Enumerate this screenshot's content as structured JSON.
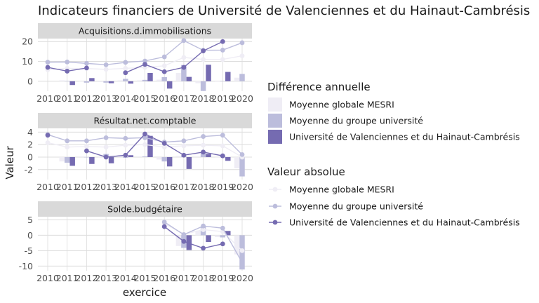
{
  "title": "Indicateurs financiers de Université de Valenciennes et du Hainaut-Cambrésis",
  "xlabel": "exercice",
  "ylabel": "Valeur",
  "colors": {
    "mesri": "#efedf5",
    "groupe": "#bcbddc",
    "univ": "#756bb1",
    "strip": "#d9d9d9",
    "grid": "#dcdcdc"
  },
  "legend": {
    "bar_title": "Différence annuelle",
    "line_title": "Valeur absolue",
    "entries": [
      "Moyenne globale MESRI",
      "Moyenne du groupe université",
      "Université de Valenciennes et du Hainaut-Cambrésis"
    ]
  },
  "chart_data": [
    {
      "type": "line",
      "title": "Acquisitions.d.immobilisations",
      "x": [
        2010,
        2011,
        2012,
        2013,
        2014,
        2015,
        2016,
        2017,
        2018,
        2019,
        2020
      ],
      "ylim": [
        -5,
        21.5
      ],
      "yticks": [
        0,
        10,
        20
      ],
      "series": [
        {
          "name": "Moyenne globale MESRI",
          "values": [
            5.8,
            6.5,
            6.4,
            6.0,
            6.5,
            7.0,
            7.8,
            12.0,
            11.0,
            11.0,
            12.8
          ]
        },
        {
          "name": "Moyenne du groupe université",
          "values": [
            9.6,
            9.7,
            9.0,
            8.3,
            9.5,
            10.2,
            12.3,
            20.5,
            15.6,
            15.7,
            19.4
          ]
        },
        {
          "name": "Université de Valenciennes et du Hainaut-Cambrésis",
          "values": [
            7.0,
            5.1,
            6.7,
            null,
            4.3,
            8.5,
            4.8,
            7.0,
            15.3,
            20.0,
            null
          ]
        }
      ],
      "bars": [
        {
          "name": "Moyenne globale MESRI",
          "values": [
            null,
            0.5,
            -0.2,
            -0.4,
            0.5,
            0.5,
            0.8,
            4.2,
            -1.0,
            0.0,
            1.8
          ]
        },
        {
          "name": "Moyenne du groupe université",
          "values": [
            null,
            0.1,
            -0.7,
            -0.7,
            1.2,
            0.7,
            2.1,
            8.2,
            -4.9,
            0.1,
            3.7
          ]
        },
        {
          "name": "Université de Valenciennes et du Hainaut-Cambrésis",
          "values": [
            null,
            -1.9,
            1.6,
            -1.0,
            -1.2,
            4.2,
            -3.7,
            2.2,
            8.3,
            4.7,
            null
          ]
        }
      ]
    },
    {
      "type": "line",
      "title": "Résultat.net.comptable",
      "x": [
        2010,
        2011,
        2012,
        2013,
        2014,
        2015,
        2016,
        2017,
        2018,
        2019,
        2020
      ],
      "ylim": [
        -3.6,
        4.6
      ],
      "yticks": [
        -2,
        0,
        2,
        4
      ],
      "series": [
        {
          "name": "Moyenne globale MESRI",
          "values": [
            2.3,
            1.6,
            1.7,
            1.6,
            1.9,
            2.0,
            1.6,
            1.8,
            1.9,
            1.8,
            0.0
          ]
        },
        {
          "name": "Moyenne du groupe université",
          "values": [
            3.6,
            2.6,
            2.6,
            3.1,
            3.0,
            3.1,
            2.4,
            2.6,
            3.3,
            3.5,
            0.4
          ]
        },
        {
          "name": "Université de Valenciennes et du Hainaut-Cambrésis",
          "values": [
            3.5,
            null,
            1.0,
            0.0,
            0.3,
            3.7,
            2.2,
            0.3,
            0.8,
            0.2,
            null
          ]
        }
      ],
      "bars": [
        {
          "name": "Moyenne globale MESRI",
          "values": [
            null,
            -0.7,
            0.1,
            -0.1,
            0.3,
            0.1,
            -0.4,
            0.2,
            0.1,
            -0.1,
            -1.8
          ]
        },
        {
          "name": "Moyenne du groupe université",
          "values": [
            null,
            -0.9,
            0.0,
            0.5,
            -0.1,
            0.1,
            -0.7,
            0.2,
            0.7,
            0.2,
            -3.1
          ]
        },
        {
          "name": "Université de Valenciennes et du Hainaut-Cambrésis",
          "values": [
            null,
            -1.4,
            -1.1,
            -1.0,
            0.3,
            3.4,
            -1.5,
            -1.9,
            0.5,
            -0.6,
            null
          ]
        }
      ]
    },
    {
      "type": "line",
      "title": "Solde.budgétaire",
      "x": [
        2010,
        2011,
        2012,
        2013,
        2014,
        2015,
        2016,
        2017,
        2018,
        2019,
        2020
      ],
      "ylim": [
        -11.5,
        6.0
      ],
      "yticks": [
        -10,
        -5,
        0,
        5
      ],
      "series": [
        {
          "name": "Moyenne globale MESRI",
          "values": [
            null,
            null,
            null,
            null,
            null,
            null,
            3.8,
            0.3,
            1.8,
            1.2,
            -5.0
          ]
        },
        {
          "name": "Moyenne du groupe université",
          "values": [
            null,
            null,
            null,
            null,
            null,
            null,
            4.3,
            0.2,
            3.0,
            2.3,
            -8.8
          ]
        },
        {
          "name": "Université de Valenciennes et du Hainaut-Cambrésis",
          "values": [
            null,
            null,
            null,
            null,
            null,
            null,
            2.8,
            -2.0,
            -4.2,
            -2.8,
            null
          ]
        }
      ],
      "bars": [
        {
          "name": "Moyenne globale MESRI",
          "values": [
            null,
            null,
            null,
            null,
            null,
            null,
            null,
            -3.5,
            1.5,
            -0.6,
            -6.2
          ]
        },
        {
          "name": "Moyenne du groupe université",
          "values": [
            null,
            null,
            null,
            null,
            null,
            null,
            null,
            -4.1,
            2.8,
            -0.7,
            -11.1
          ]
        },
        {
          "name": "Université de Valenciennes et du Hainaut-Cambrésis",
          "values": [
            null,
            null,
            null,
            null,
            null,
            null,
            null,
            -4.8,
            -2.2,
            1.4,
            null
          ]
        }
      ]
    }
  ]
}
